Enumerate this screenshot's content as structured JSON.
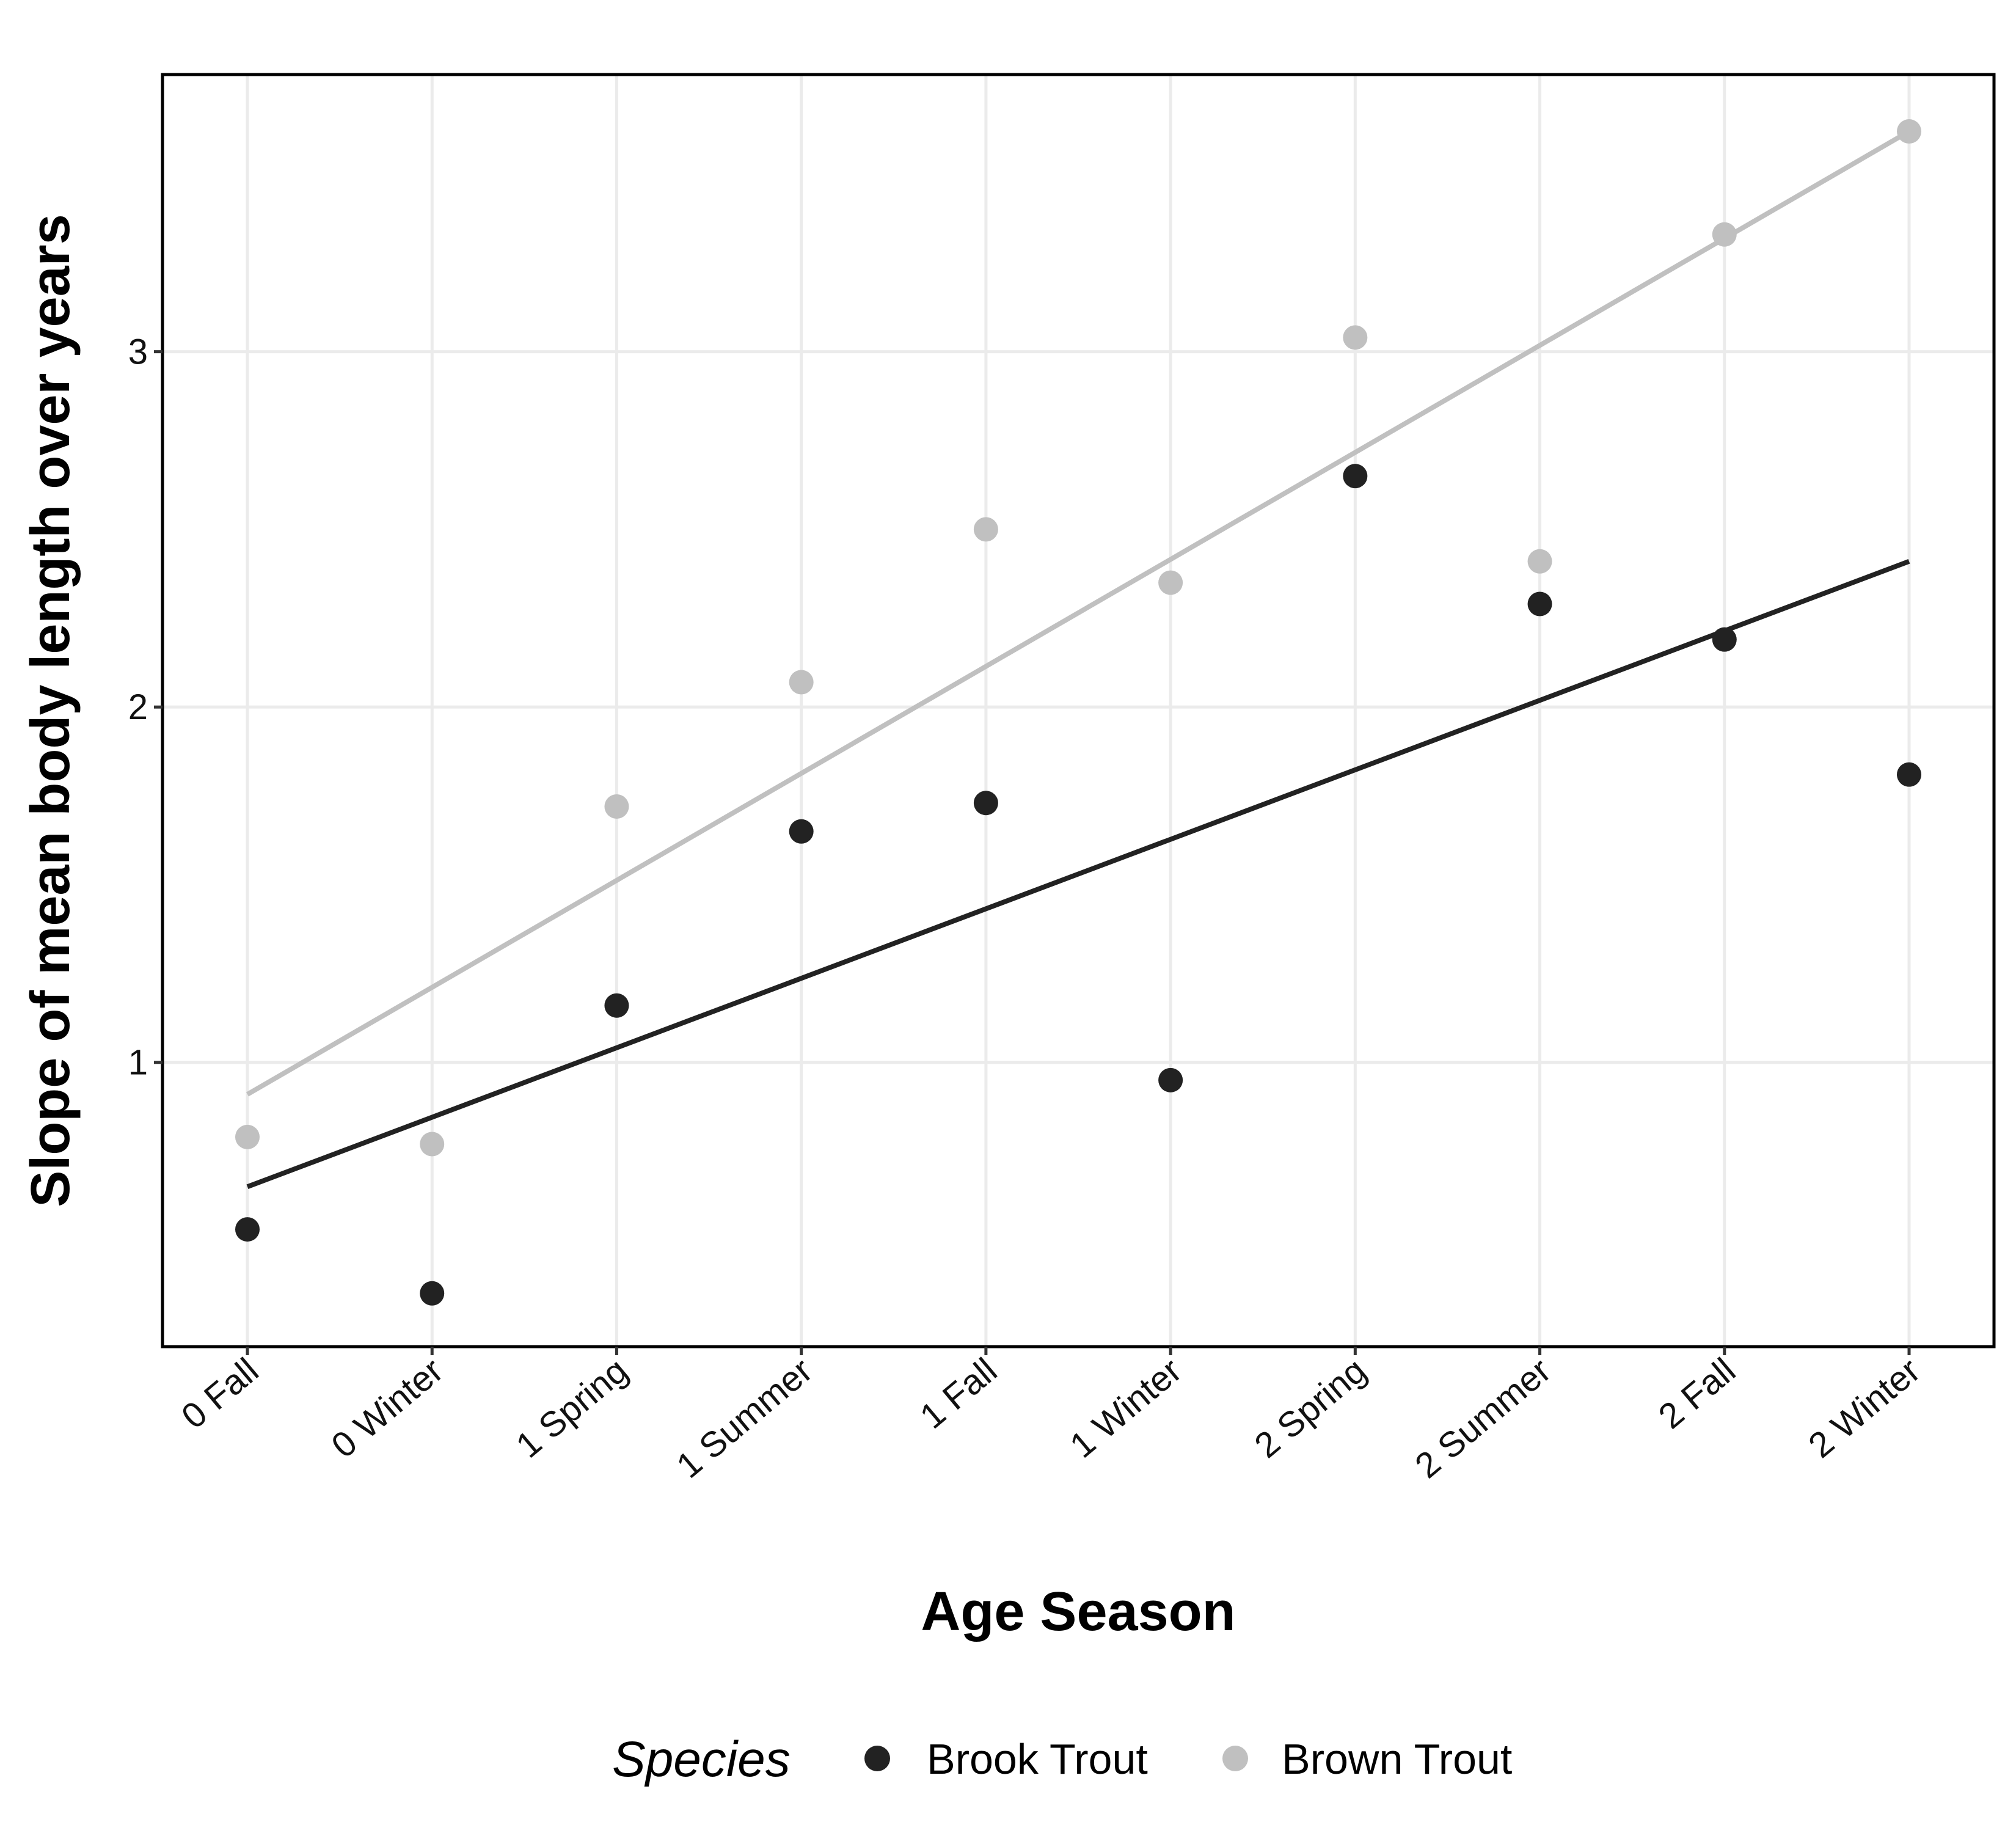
{
  "chart_data": {
    "type": "scatter",
    "title": "",
    "xlabel": "Age Season",
    "ylabel": "Slope of mean body length over years",
    "categories": [
      "0 Fall",
      "0 Winter",
      "1 Spring",
      "1 Summer",
      "1 Fall",
      "1 Winter",
      "2 Spring",
      "2 Summer",
      "2 Fall",
      "2 Winter"
    ],
    "yticks": [
      1,
      2,
      3
    ],
    "ylim": [
      0.2,
      3.78
    ],
    "grid": true,
    "legend": {
      "title": "Species",
      "placement": "bottom"
    },
    "series": [
      {
        "name": "Brook Trout",
        "color": "#222222",
        "values": [
          0.53,
          0.35,
          1.16,
          1.65,
          1.73,
          0.95,
          2.65,
          2.29,
          2.19,
          1.81
        ],
        "trendline": {
          "start": 0.65,
          "end": 2.41
        }
      },
      {
        "name": "Brown Trout",
        "color": "#c0c0c0",
        "values": [
          0.79,
          0.77,
          1.72,
          2.07,
          2.5,
          2.35,
          3.04,
          2.41,
          3.33,
          3.62
        ],
        "trendline": {
          "start": 0.91,
          "end": 3.62
        }
      }
    ]
  }
}
